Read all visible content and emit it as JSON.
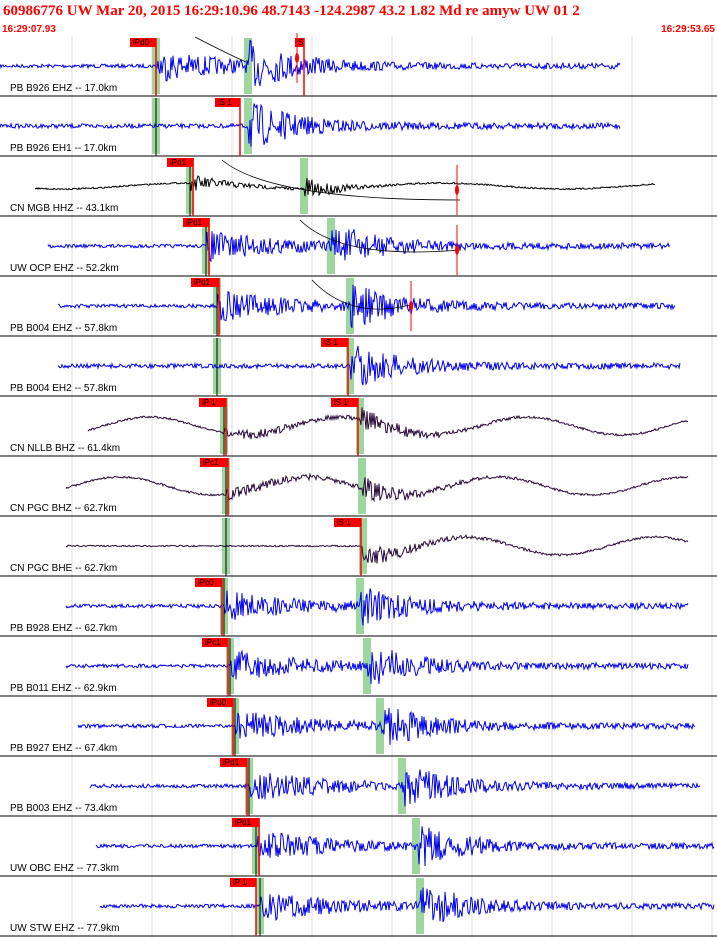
{
  "header": {
    "title": "60986776 UW Mar 20, 2015 16:29:10.96    48.7143 -124.2987 43.2 1.82 Md re amyw UW 01   2",
    "start_time": "16:29:07.93",
    "end_time": "16:29:53.65"
  },
  "colors": {
    "blue_trace": "#0000ee",
    "dark_trace": "#2a0a3a",
    "pick_box": "#ff0000",
    "marker": "#9ed79e",
    "grid": "#c8c8c8"
  },
  "traces": [
    {
      "label": "PB B926 EHZ -- 17.0km",
      "color": "blue",
      "picks": [
        "iPd0",
        "S"
      ]
    },
    {
      "label": "PB B926 EH1 -- 17.0km",
      "color": "blue",
      "picks": [
        "iS 1"
      ]
    },
    {
      "label": "CN MGB HHZ -- 43.1km",
      "color": "black",
      "picks": [
        "iPd1"
      ]
    },
    {
      "label": "UW OCP EHZ -- 52.2km",
      "color": "blue",
      "picks": [
        "iPd1"
      ]
    },
    {
      "label": "PB B004 EHZ -- 57.8km",
      "color": "blue",
      "picks": [
        "iPd1"
      ]
    },
    {
      "label": "PB B004 EH2 -- 57.8km",
      "color": "blue",
      "picks": [
        "iS 1"
      ]
    },
    {
      "label": "CN NLLB BHZ -- 61.4km",
      "color": "dark",
      "picks": [
        "iP 1",
        "iS 1"
      ]
    },
    {
      "label": "CN PGC BHZ -- 62.7km",
      "color": "dark",
      "picks": [
        "iPc1"
      ]
    },
    {
      "label": "CN PGC BHE -- 62.7km",
      "color": "dark",
      "picks": [
        "iS 1"
      ]
    },
    {
      "label": "PB B928 EHZ -- 62.7km",
      "color": "blue",
      "picks": [
        "iPc0"
      ]
    },
    {
      "label": "PB B011 EHZ -- 62.9km",
      "color": "blue",
      "picks": [
        "iPc1"
      ]
    },
    {
      "label": "PB B927 EHZ -- 67.4km",
      "color": "blue",
      "picks": [
        "iPd0"
      ]
    },
    {
      "label": "PB B003 EHZ -- 73.4km",
      "color": "blue",
      "picks": [
        "iPd1"
      ]
    },
    {
      "label": "UW OBC EHZ -- 77.3km",
      "color": "blue",
      "picks": [
        "iPd1"
      ]
    },
    {
      "label": "UW STW EHZ -- 77.9km",
      "color": "blue",
      "picks": [
        "iP 1"
      ]
    }
  ]
}
